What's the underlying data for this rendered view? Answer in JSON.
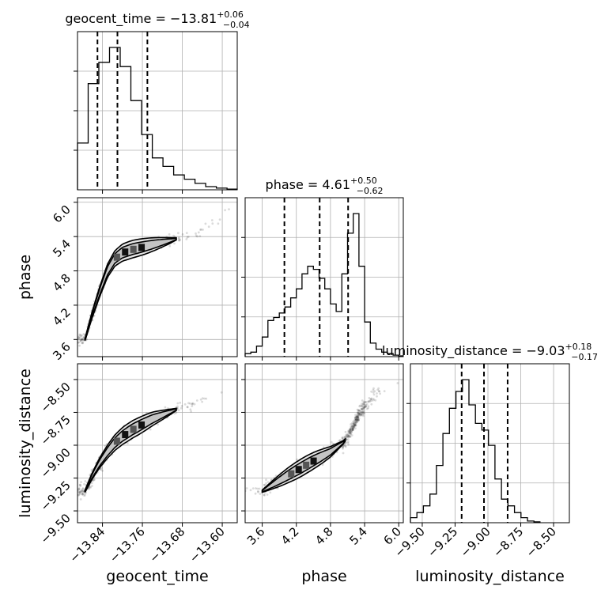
{
  "chart_data": {
    "type": "corner",
    "parameters": [
      "geocent_time",
      "phase",
      "luminosity_distance"
    ],
    "titles": [
      {
        "param": "geocent_time",
        "label": "geocent_time",
        "median": "−13.81",
        "plus": "+0.06",
        "minus": "−0.04"
      },
      {
        "param": "phase",
        "label": "phase",
        "median": "4.61",
        "plus": "+0.50",
        "minus": "−0.62"
      },
      {
        "param": "luminosity_distance",
        "label": "luminosity_distance",
        "median": "−9.03",
        "plus": "+0.18",
        "minus": "−0.17"
      }
    ],
    "axis_labels": {
      "x": [
        "geocent_time",
        "phase",
        "luminosity_distance"
      ],
      "y": [
        "phase",
        "luminosity_distance"
      ]
    },
    "ranges": {
      "geocent_time": [
        -13.89,
        -13.57
      ],
      "phase": [
        3.3,
        6.08
      ],
      "luminosity_distance": [
        -9.59,
        -8.38
      ]
    },
    "ticks": {
      "geocent_time": {
        "values": [
          -13.84,
          -13.76,
          -13.68,
          -13.6
        ],
        "labels": [
          "−13.84",
          "−13.76",
          "−13.68",
          "−13.60"
        ]
      },
      "phase": {
        "values": [
          3.6,
          4.2,
          4.8,
          5.4,
          6.0
        ],
        "labels": [
          "3.6",
          "4.2",
          "4.8",
          "5.4",
          "6.0"
        ]
      },
      "luminosity_distance": {
        "values": [
          -9.5,
          -9.25,
          -9.0,
          -8.75,
          -8.5
        ],
        "labels": [
          "−9.50",
          "−9.25",
          "−9.00",
          "−8.75",
          "−8.50"
        ]
      }
    },
    "quantiles": {
      "geocent_time": [
        -13.85,
        -13.81,
        -13.75
      ],
      "phase": [
        3.99,
        4.61,
        5.11
      ],
      "luminosity_distance": [
        -9.2,
        -9.03,
        -8.85
      ]
    },
    "histograms": {
      "geocent_time": {
        "edges": [
          -13.89,
          -13.8686,
          -13.8472,
          -13.8258,
          -13.8044,
          -13.783,
          -13.7616,
          -13.7402,
          -13.7188,
          -13.6974,
          -13.676,
          -13.6546,
          -13.6332,
          -13.6118,
          -13.5904,
          -13.569
        ],
        "counts": [
          0.22,
          0.5,
          0.6,
          0.67,
          0.58,
          0.42,
          0.26,
          0.15,
          0.11,
          0.07,
          0.05,
          0.03,
          0.015,
          0.008,
          0.003
        ]
      },
      "phase": {
        "edges": [
          3.3,
          3.4,
          3.5,
          3.6,
          3.7,
          3.8,
          3.9,
          4.0,
          4.1,
          4.2,
          4.3,
          4.4,
          4.5,
          4.6,
          4.7,
          4.8,
          4.9,
          5.0,
          5.1,
          5.2,
          5.3,
          5.4,
          5.5,
          5.6,
          5.7,
          5.8,
          5.9,
          6.0,
          6.08
        ],
        "counts": [
          0.02,
          0.03,
          0.07,
          0.13,
          0.24,
          0.26,
          0.29,
          0.33,
          0.39,
          0.45,
          0.55,
          0.6,
          0.58,
          0.52,
          0.45,
          0.35,
          0.3,
          0.55,
          0.82,
          0.95,
          0.6,
          0.23,
          0.09,
          0.05,
          0.03,
          0.02,
          0.01,
          0.005
        ]
      },
      "luminosity_distance": {
        "edges": [
          -9.59,
          -9.5405,
          -9.491,
          -9.4415,
          -9.392,
          -9.3425,
          -9.293,
          -9.2435,
          -9.194,
          -9.1445,
          -9.095,
          -9.0455,
          -8.996,
          -8.9465,
          -8.897,
          -8.8475,
          -8.798,
          -8.7485,
          -8.699,
          -8.6495,
          -8.6
        ],
        "counts": [
          0.03,
          0.06,
          0.1,
          0.17,
          0.34,
          0.53,
          0.68,
          0.78,
          0.85,
          0.7,
          0.59,
          0.55,
          0.46,
          0.26,
          0.14,
          0.1,
          0.06,
          0.03,
          0.01,
          0.005
        ]
      }
    },
    "joint_trend": {
      "geocent_time": [
        -13.875,
        -13.86,
        -13.845,
        -13.83,
        -13.815,
        -13.8,
        -13.78,
        -13.76,
        -13.74,
        -13.72,
        -13.7,
        -13.68,
        -13.66,
        -13.64,
        -13.62,
        -13.6,
        -13.58
      ],
      "phase": [
        3.6,
        4.05,
        4.45,
        4.8,
        5.02,
        5.12,
        5.18,
        5.22,
        5.26,
        5.3,
        5.34,
        5.39,
        5.45,
        5.52,
        5.6,
        5.72,
        5.95
      ],
      "luminosity_distance": [
        -9.35,
        -9.23,
        -9.13,
        -9.05,
        -8.98,
        -8.93,
        -8.88,
        -8.84,
        -8.8,
        -8.77,
        -8.74,
        -8.71,
        -8.68,
        -8.65,
        -8.61,
        -8.57,
        -8.52
      ]
    }
  }
}
